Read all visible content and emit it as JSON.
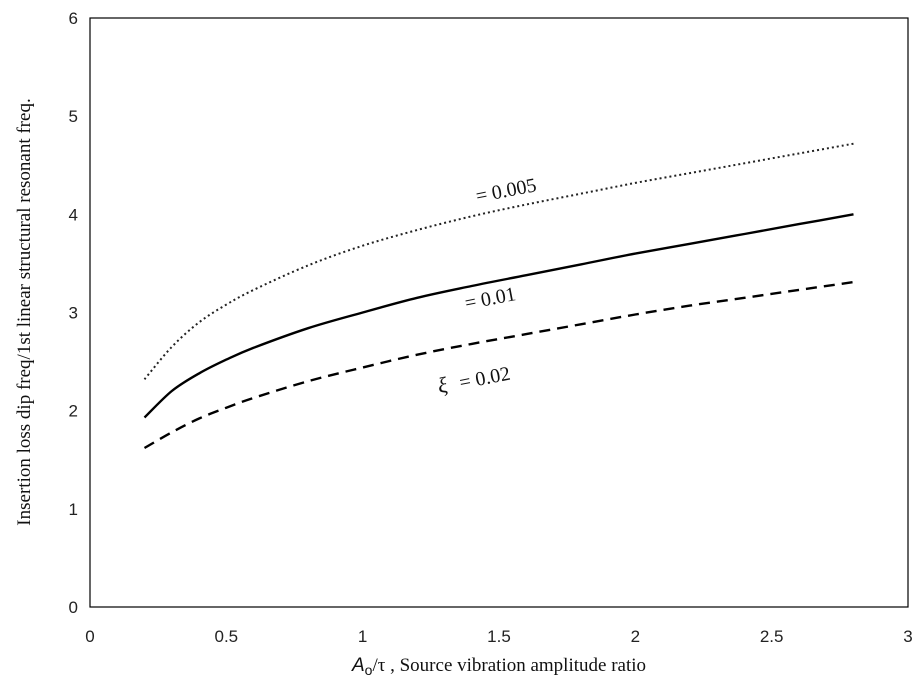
{
  "chart_data": {
    "type": "line",
    "xlabel_symbol": "A",
    "xlabel_sub": "o",
    "xlabel_rest": "/τ ,  Source vibration amplitude ratio",
    "ylabel": "Insertion loss dip  freq/1st linear structural resonant freq.",
    "xlim": [
      0,
      3
    ],
    "ylim": [
      0,
      6
    ],
    "xticks": [
      "0",
      "0.5",
      "1",
      "1.5",
      "2",
      "2.5",
      "3"
    ],
    "yticks": [
      "0",
      "1",
      "2",
      "3",
      "4",
      "5",
      "6"
    ],
    "grid": false,
    "legend": "none",
    "x": [
      0.2,
      0.3,
      0.4,
      0.5,
      0.6,
      0.8,
      1.0,
      1.2,
      1.4,
      1.6,
      1.8,
      2.0,
      2.2,
      2.4,
      2.6,
      2.8
    ],
    "series": [
      {
        "style": "dotted",
        "color": "#222222",
        "values": [
          2.32,
          2.65,
          2.9,
          3.08,
          3.23,
          3.48,
          3.68,
          3.84,
          3.98,
          4.1,
          4.21,
          4.32,
          4.42,
          4.52,
          4.62,
          4.72
        ]
      },
      {
        "style": "solid",
        "color": "#000000",
        "values": [
          1.93,
          2.2,
          2.38,
          2.52,
          2.64,
          2.84,
          3.0,
          3.15,
          3.27,
          3.38,
          3.49,
          3.6,
          3.7,
          3.8,
          3.9,
          4.0
        ]
      },
      {
        "style": "dashed",
        "color": "#000000",
        "values": [
          1.62,
          1.78,
          1.92,
          2.03,
          2.13,
          2.3,
          2.44,
          2.57,
          2.68,
          2.78,
          2.88,
          2.98,
          3.07,
          3.15,
          3.23,
          3.31
        ]
      }
    ],
    "annotations": [
      {
        "prefix": "",
        "text": "= 0.005",
        "x": 1.42,
        "y": 4.12
      },
      {
        "prefix": "",
        "text": "= 0.01",
        "x": 1.38,
        "y": 3.03
      },
      {
        "prefix": "ξ",
        "text": "= 0.02",
        "x": 1.36,
        "y": 2.22
      }
    ]
  }
}
